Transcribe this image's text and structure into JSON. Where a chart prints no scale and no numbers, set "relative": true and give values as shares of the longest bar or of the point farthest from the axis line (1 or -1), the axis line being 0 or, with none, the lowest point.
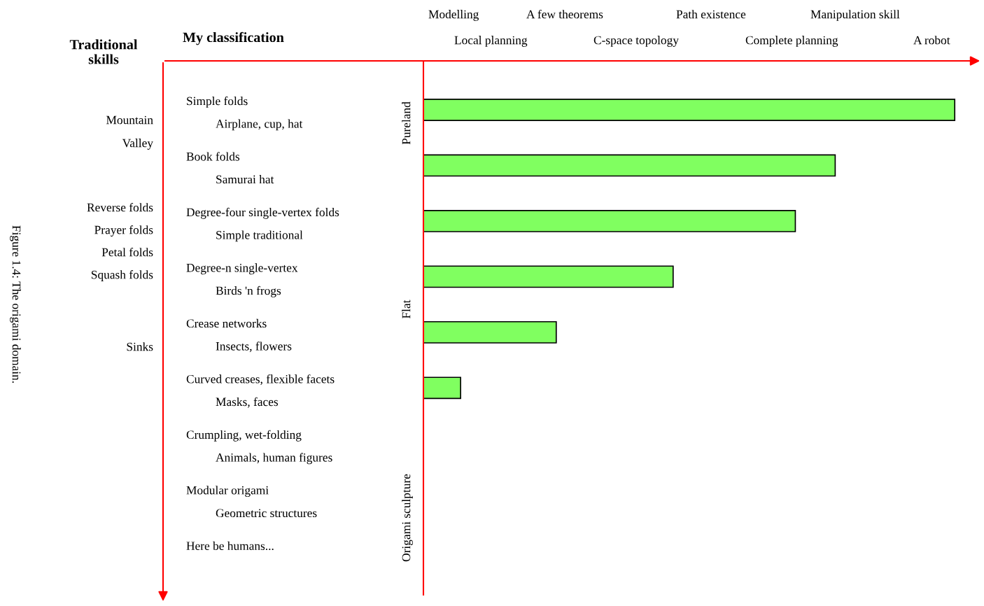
{
  "chart_data": {
    "type": "bar",
    "orientation": "horizontal",
    "relative": true,
    "color": "#80ff60",
    "categories": [
      "Simple folds\nAirplane, cup, hat",
      "Book folds\nSamurai hat",
      "Degree-four single-vertex folds\nSimple traditional",
      "Degree-n single-vertex\nBirds 'n frogs",
      "Crease networks\nInsects, flowers",
      "Curved creases, flexible facets\nMasks, faces",
      "Crumpling, wet-folding\nAnimals, human figures",
      "Modular origami\nGeometric structures",
      "Here be humans..."
    ],
    "values": [
      1,
      0.775,
      0.7,
      0.47,
      0.25,
      0.07,
      null,
      null,
      null
    ],
    "annotations": [
      "Traditional\nskills",
      "My classification",
      "Mountain",
      "Valley",
      "Reverse folds",
      "Prayer folds",
      "Petal folds",
      "Squash folds",
      "Sinks",
      "Modelling",
      "A few theorems",
      "Path existence",
      "Manipulation skill",
      "Local planning",
      "C-space topology",
      "Complete planning",
      "A robot",
      "Pureland",
      "Flat",
      "Origami sculpture",
      "Figure 1.4: The origami domain."
    ]
  }
}
